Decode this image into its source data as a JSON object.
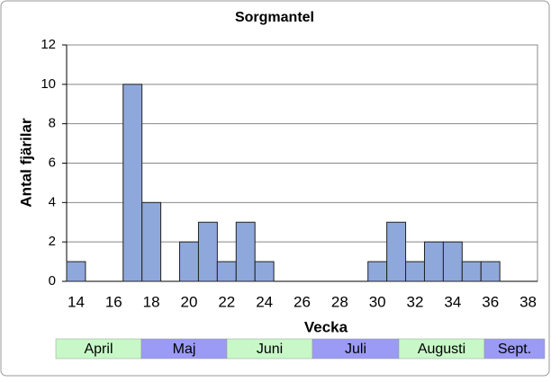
{
  "chart_data": {
    "type": "bar",
    "title": "Sorgmantel",
    "x_label": "Vecka",
    "y_label": "Antal fjärilar",
    "categories": [
      "14",
      null,
      "16",
      null,
      "18",
      null,
      "20",
      null,
      "22",
      null,
      "24",
      null,
      "26",
      null,
      "28",
      null,
      "30",
      null,
      "32",
      null,
      "34",
      null,
      "36",
      null,
      "38"
    ],
    "values": [
      1,
      0,
      0,
      10,
      4,
      0,
      2,
      3,
      1,
      3,
      1,
      0,
      0,
      0,
      0,
      0,
      1,
      3,
      1,
      2,
      2,
      1,
      1,
      0,
      0
    ],
    "color": "#8fa8dc",
    "ylim": [
      0,
      12
    ],
    "yticks": [
      0,
      2,
      4,
      6,
      8,
      10,
      12
    ],
    "grid": true,
    "months": [
      {
        "label": "April",
        "color": "#c8f7c8"
      },
      {
        "label": "Maj",
        "color": "#9b9bf5"
      },
      {
        "label": "Juni",
        "color": "#c8f7c8"
      },
      {
        "label": "Juli",
        "color": "#9b9bf5"
      },
      {
        "label": "Augusti",
        "color": "#c8f7c8"
      },
      {
        "label": "Sept.",
        "color": "#9b9bf5"
      }
    ]
  }
}
